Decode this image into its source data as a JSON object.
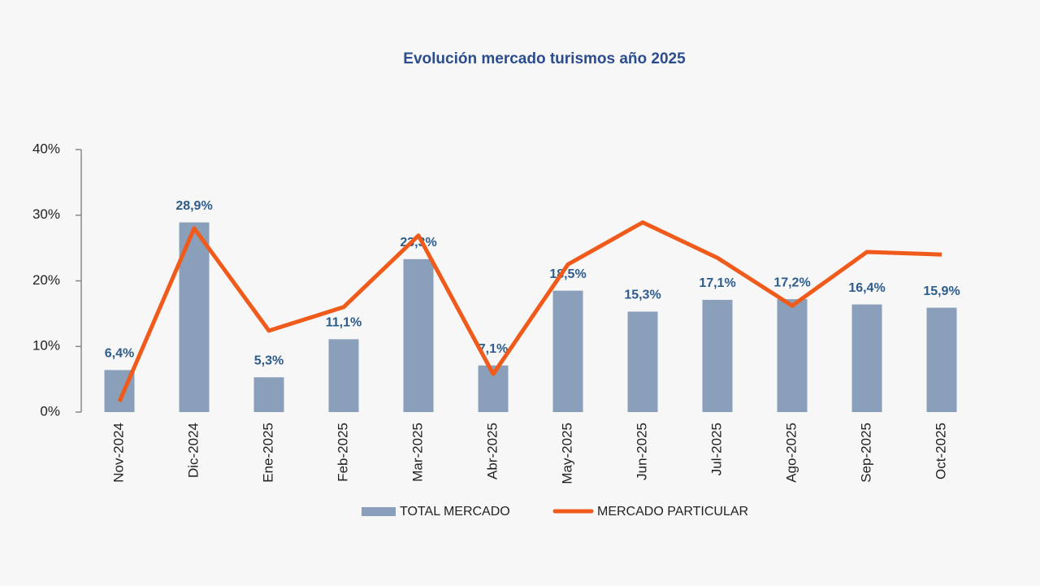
{
  "chart_data": {
    "type": "bar-line",
    "title": "Evolución mercado turismos año 2025",
    "categories": [
      "Nov-2024",
      "Dic-2024",
      "Ene-2025",
      "Feb-2025",
      "Mar-2025",
      "Abr-2025",
      "May-2025",
      "Jun-2025",
      "Jul-2025",
      "Ago-2025",
      "Sep-2025",
      "Oct-2025"
    ],
    "series": [
      {
        "name": "TOTAL MERCADO",
        "type": "bar",
        "color": "#8a9fba",
        "values": [
          6.4,
          28.9,
          5.3,
          11.1,
          23.3,
          7.1,
          18.5,
          15.3,
          17.1,
          17.2,
          16.4,
          15.9
        ],
        "value_labels": [
          "6,4%",
          "28,9%",
          "5,3%",
          "11,1%",
          "23,3%",
          "7,1%",
          "18,5%",
          "15,3%",
          "17,1%",
          "17,2%",
          "16,4%",
          "15,9%"
        ]
      },
      {
        "name": "MERCADO PARTICULAR",
        "type": "line",
        "color": "#f05a1a",
        "values": [
          1.6,
          28.0,
          12.4,
          16.0,
          26.9,
          5.8,
          22.5,
          28.9,
          23.5,
          16.2,
          24.4,
          24.0
        ]
      }
    ],
    "ylim": [
      0,
      40
    ],
    "yticks": [
      {
        "value": 0,
        "label": "0%"
      },
      {
        "value": 10,
        "label": "10%"
      },
      {
        "value": 20,
        "label": "20%"
      },
      {
        "value": 30,
        "label": "30%"
      },
      {
        "value": 40,
        "label": "40%"
      }
    ],
    "value_label_color": "#2e5c8a"
  }
}
